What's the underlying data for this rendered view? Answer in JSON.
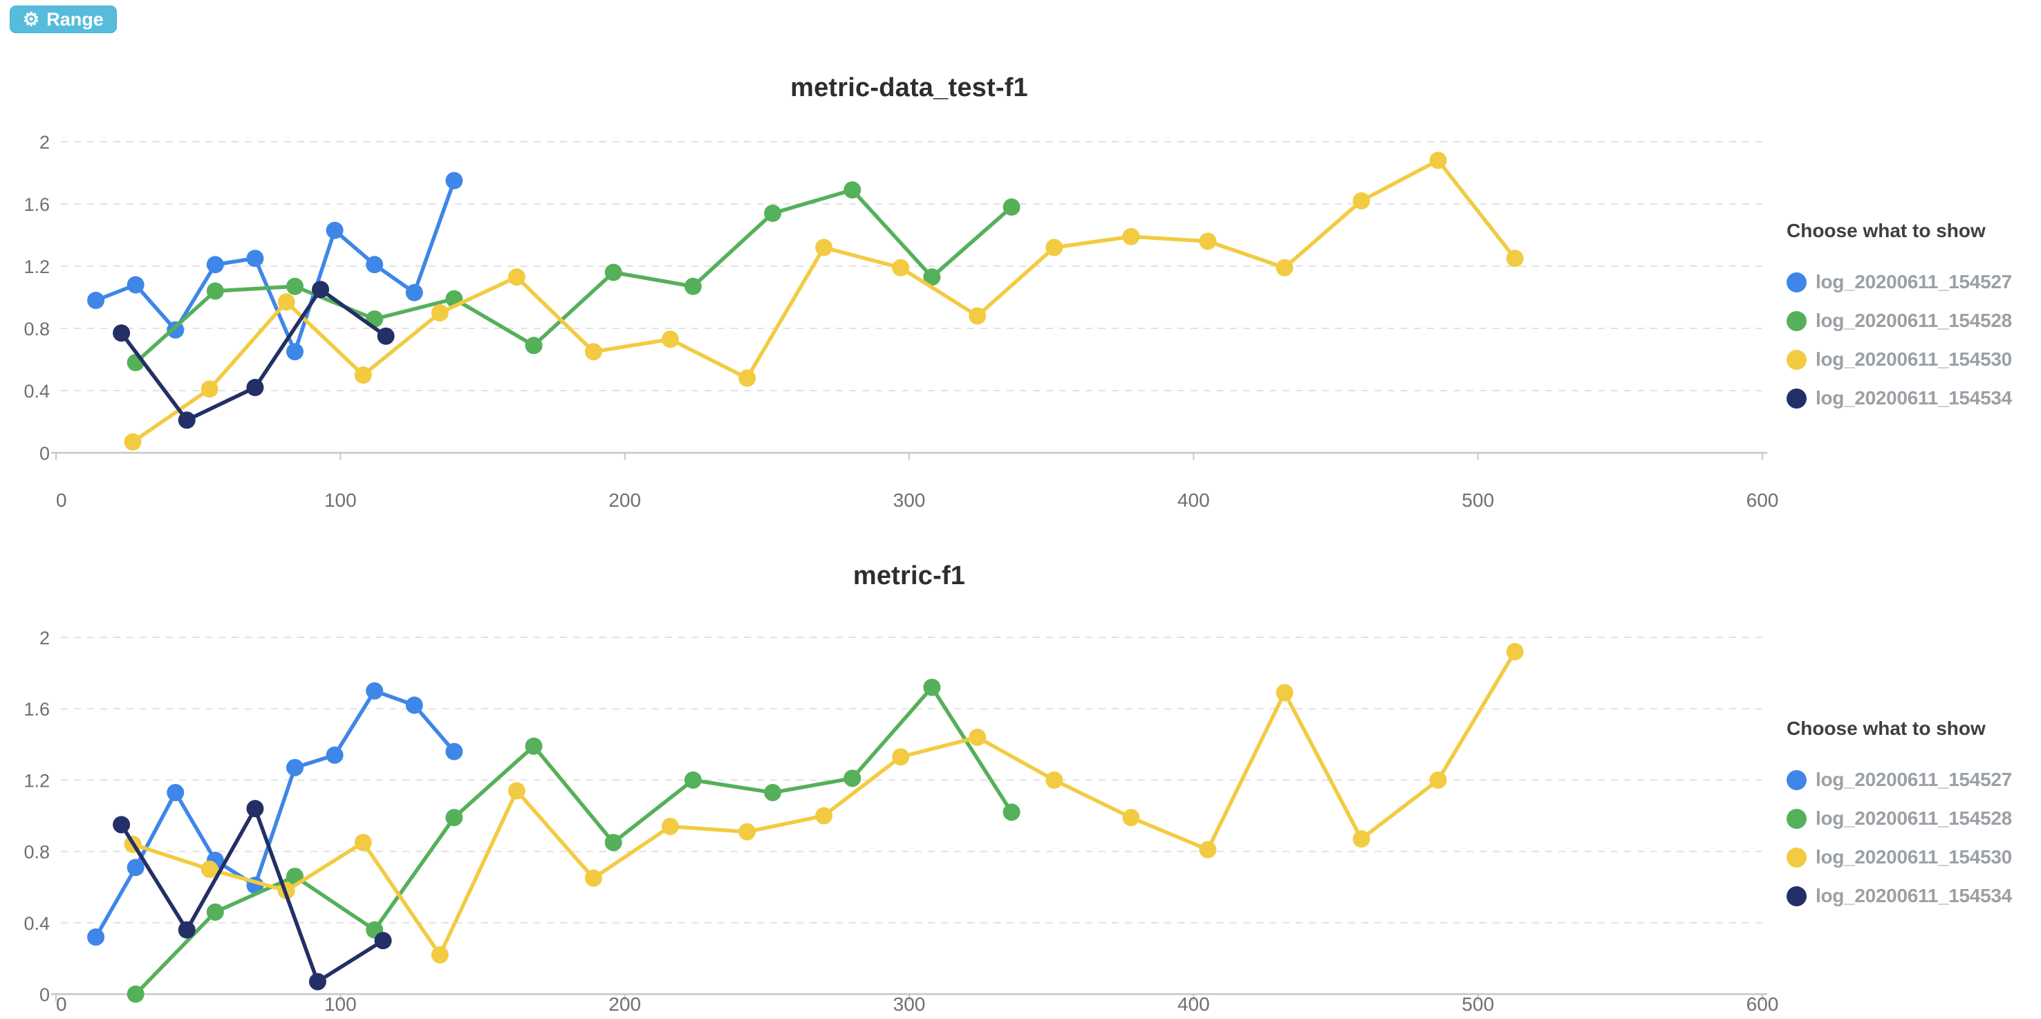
{
  "toolbar": {
    "range_button": {
      "label": "Range",
      "icon": "gear-icon",
      "bg": "#57bcdc",
      "text_color": "#ffffff"
    }
  },
  "chart_data": [
    {
      "type": "line",
      "title": "metric-data_test-f1",
      "legend_title": "Choose what to show",
      "legend_position": "right",
      "grid": true,
      "xlim": [
        0,
        600
      ],
      "ylim": [
        0,
        2
      ],
      "x_ticks": [
        0,
        100,
        200,
        300,
        400,
        500,
        600
      ],
      "y_ticks": [
        0,
        0.4,
        0.8,
        1.2,
        1.6,
        2
      ],
      "series": [
        {
          "name": "log_20200611_154527",
          "color": "#3e86e8",
          "x": [
            14,
            28,
            42,
            56,
            70,
            84,
            98,
            112,
            126,
            140
          ],
          "y": [
            0.98,
            1.08,
            0.79,
            1.21,
            1.25,
            0.65,
            1.43,
            1.21,
            1.03,
            1.75
          ]
        },
        {
          "name": "log_20200611_154528",
          "color": "#55b05a",
          "x": [
            28,
            56,
            84,
            112,
            140,
            168,
            196,
            224,
            252,
            280,
            308,
            336
          ],
          "y": [
            0.58,
            1.04,
            1.07,
            0.86,
            0.99,
            0.69,
            1.16,
            1.07,
            1.54,
            1.69,
            1.13,
            1.58
          ]
        },
        {
          "name": "log_20200611_154530",
          "color": "#f2cb42",
          "x": [
            27,
            54,
            81,
            108,
            135,
            162,
            189,
            216,
            243,
            270,
            297,
            324,
            351,
            378,
            405,
            432,
            459,
            486,
            513
          ],
          "y": [
            0.07,
            0.41,
            0.97,
            0.5,
            0.9,
            1.13,
            0.65,
            0.73,
            0.48,
            1.32,
            1.19,
            0.88,
            1.32,
            1.39,
            1.36,
            1.19,
            1.62,
            1.88,
            1.25
          ]
        },
        {
          "name": "log_20200611_154534",
          "color": "#232f66",
          "x": [
            23,
            46,
            70,
            93,
            116
          ],
          "y": [
            0.77,
            0.21,
            0.42,
            1.05,
            0.75
          ]
        }
      ]
    },
    {
      "type": "line",
      "title": "metric-f1",
      "legend_title": "Choose what to show",
      "legend_position": "right",
      "grid": true,
      "xlim": [
        0,
        600
      ],
      "ylim": [
        0,
        2
      ],
      "x_ticks": [
        0,
        100,
        200,
        300,
        400,
        500,
        600
      ],
      "y_ticks": [
        0,
        0.4,
        0.8,
        1.2,
        1.6,
        2
      ],
      "series": [
        {
          "name": "log_20200611_154527",
          "color": "#3e86e8",
          "x": [
            14,
            28,
            42,
            56,
            70,
            84,
            98,
            112,
            126,
            140
          ],
          "y": [
            0.32,
            0.71,
            1.13,
            0.75,
            0.61,
            1.27,
            1.34,
            1.7,
            1.62,
            1.36
          ]
        },
        {
          "name": "log_20200611_154528",
          "color": "#55b05a",
          "x": [
            28,
            56,
            84,
            112,
            140,
            168,
            196,
            224,
            252,
            280,
            308,
            336
          ],
          "y": [
            0.0,
            0.46,
            0.66,
            0.36,
            0.99,
            1.39,
            0.85,
            1.2,
            1.13,
            1.21,
            1.72,
            1.02
          ]
        },
        {
          "name": "log_20200611_154530",
          "color": "#f2cb42",
          "x": [
            27,
            54,
            81,
            108,
            135,
            162,
            189,
            216,
            243,
            270,
            297,
            324,
            351,
            378,
            405,
            432,
            459,
            486,
            513
          ],
          "y": [
            0.84,
            0.7,
            0.58,
            0.85,
            0.22,
            1.14,
            0.65,
            0.94,
            0.91,
            1.0,
            1.33,
            1.44,
            1.2,
            0.99,
            0.81,
            1.69,
            0.87,
            1.2,
            1.92
          ]
        },
        {
          "name": "log_20200611_154534",
          "color": "#232f66",
          "x": [
            23,
            46,
            70,
            92,
            115
          ],
          "y": [
            0.95,
            0.36,
            1.04,
            0.07,
            0.3
          ]
        }
      ]
    }
  ],
  "style": {
    "grid_color": "#e2e2e2",
    "axis_color": "#c6c6c6",
    "tick_label_color": "#6f6f6f"
  }
}
